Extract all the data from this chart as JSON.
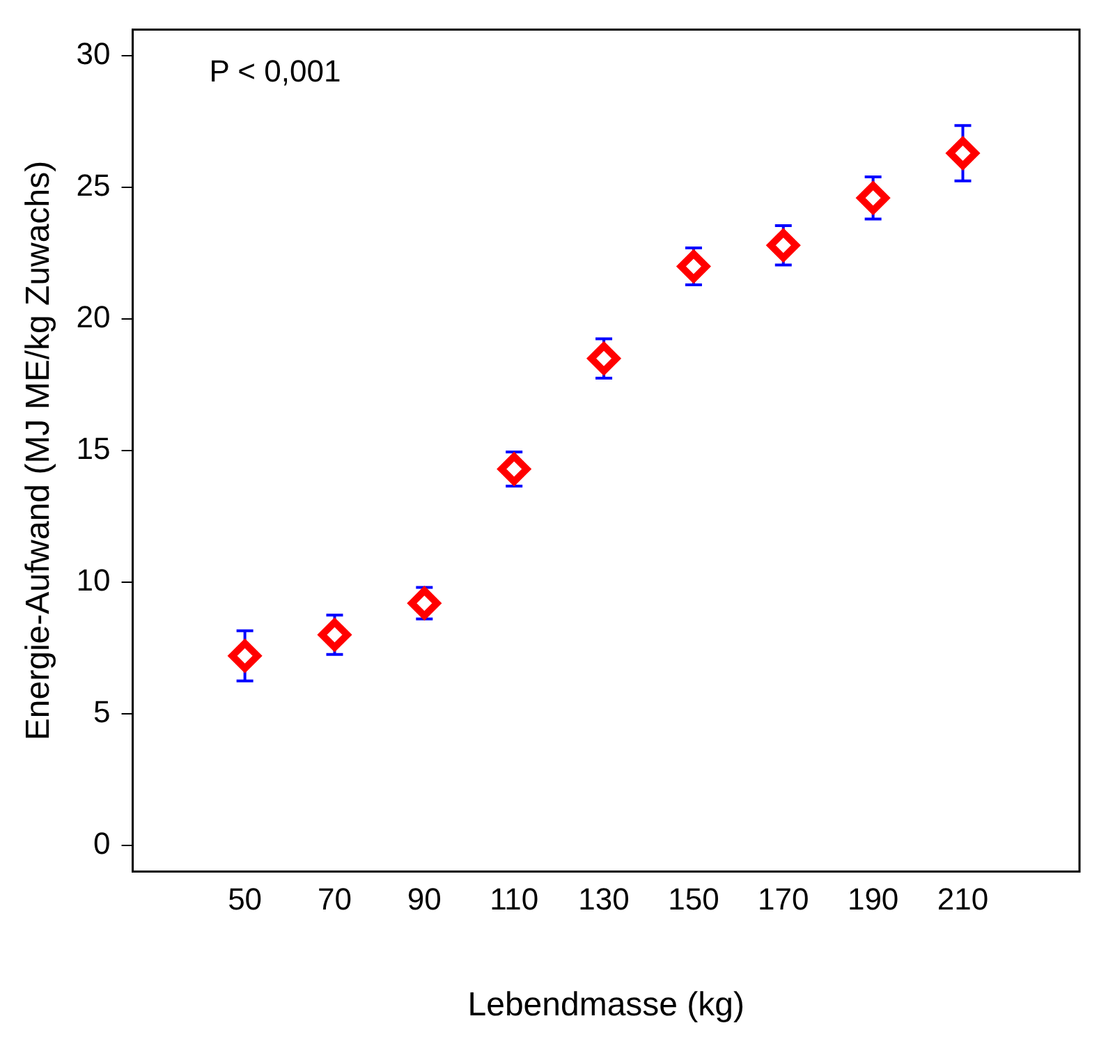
{
  "chart_data": {
    "type": "scatter",
    "xlabel": "Lebendmasse (kg)",
    "ylabel": "Energie-Aufwand (MJ ME/kg Zuwachs)",
    "annotations": [
      "P < 0,001"
    ],
    "x": [
      50,
      70,
      90,
      110,
      130,
      150,
      170,
      190,
      210
    ],
    "series": [
      {
        "color": "#ff0000",
        "values": [
          7.2,
          8.0,
          9.2,
          14.3,
          18.5,
          22.0,
          22.8,
          24.6,
          26.3
        ],
        "errors": [
          0.95,
          0.75,
          0.6,
          0.65,
          0.75,
          0.7,
          0.75,
          0.8,
          1.05
        ]
      }
    ],
    "marker": "diamond",
    "grid": false,
    "legend": false,
    "xlim": [
      25,
      236
    ],
    "xticks": [
      50,
      70,
      90,
      110,
      130,
      150,
      170,
      190,
      210
    ],
    "ylim": [
      -1,
      31
    ],
    "yticks": [
      0,
      5,
      10,
      15,
      20,
      25,
      30
    ]
  }
}
